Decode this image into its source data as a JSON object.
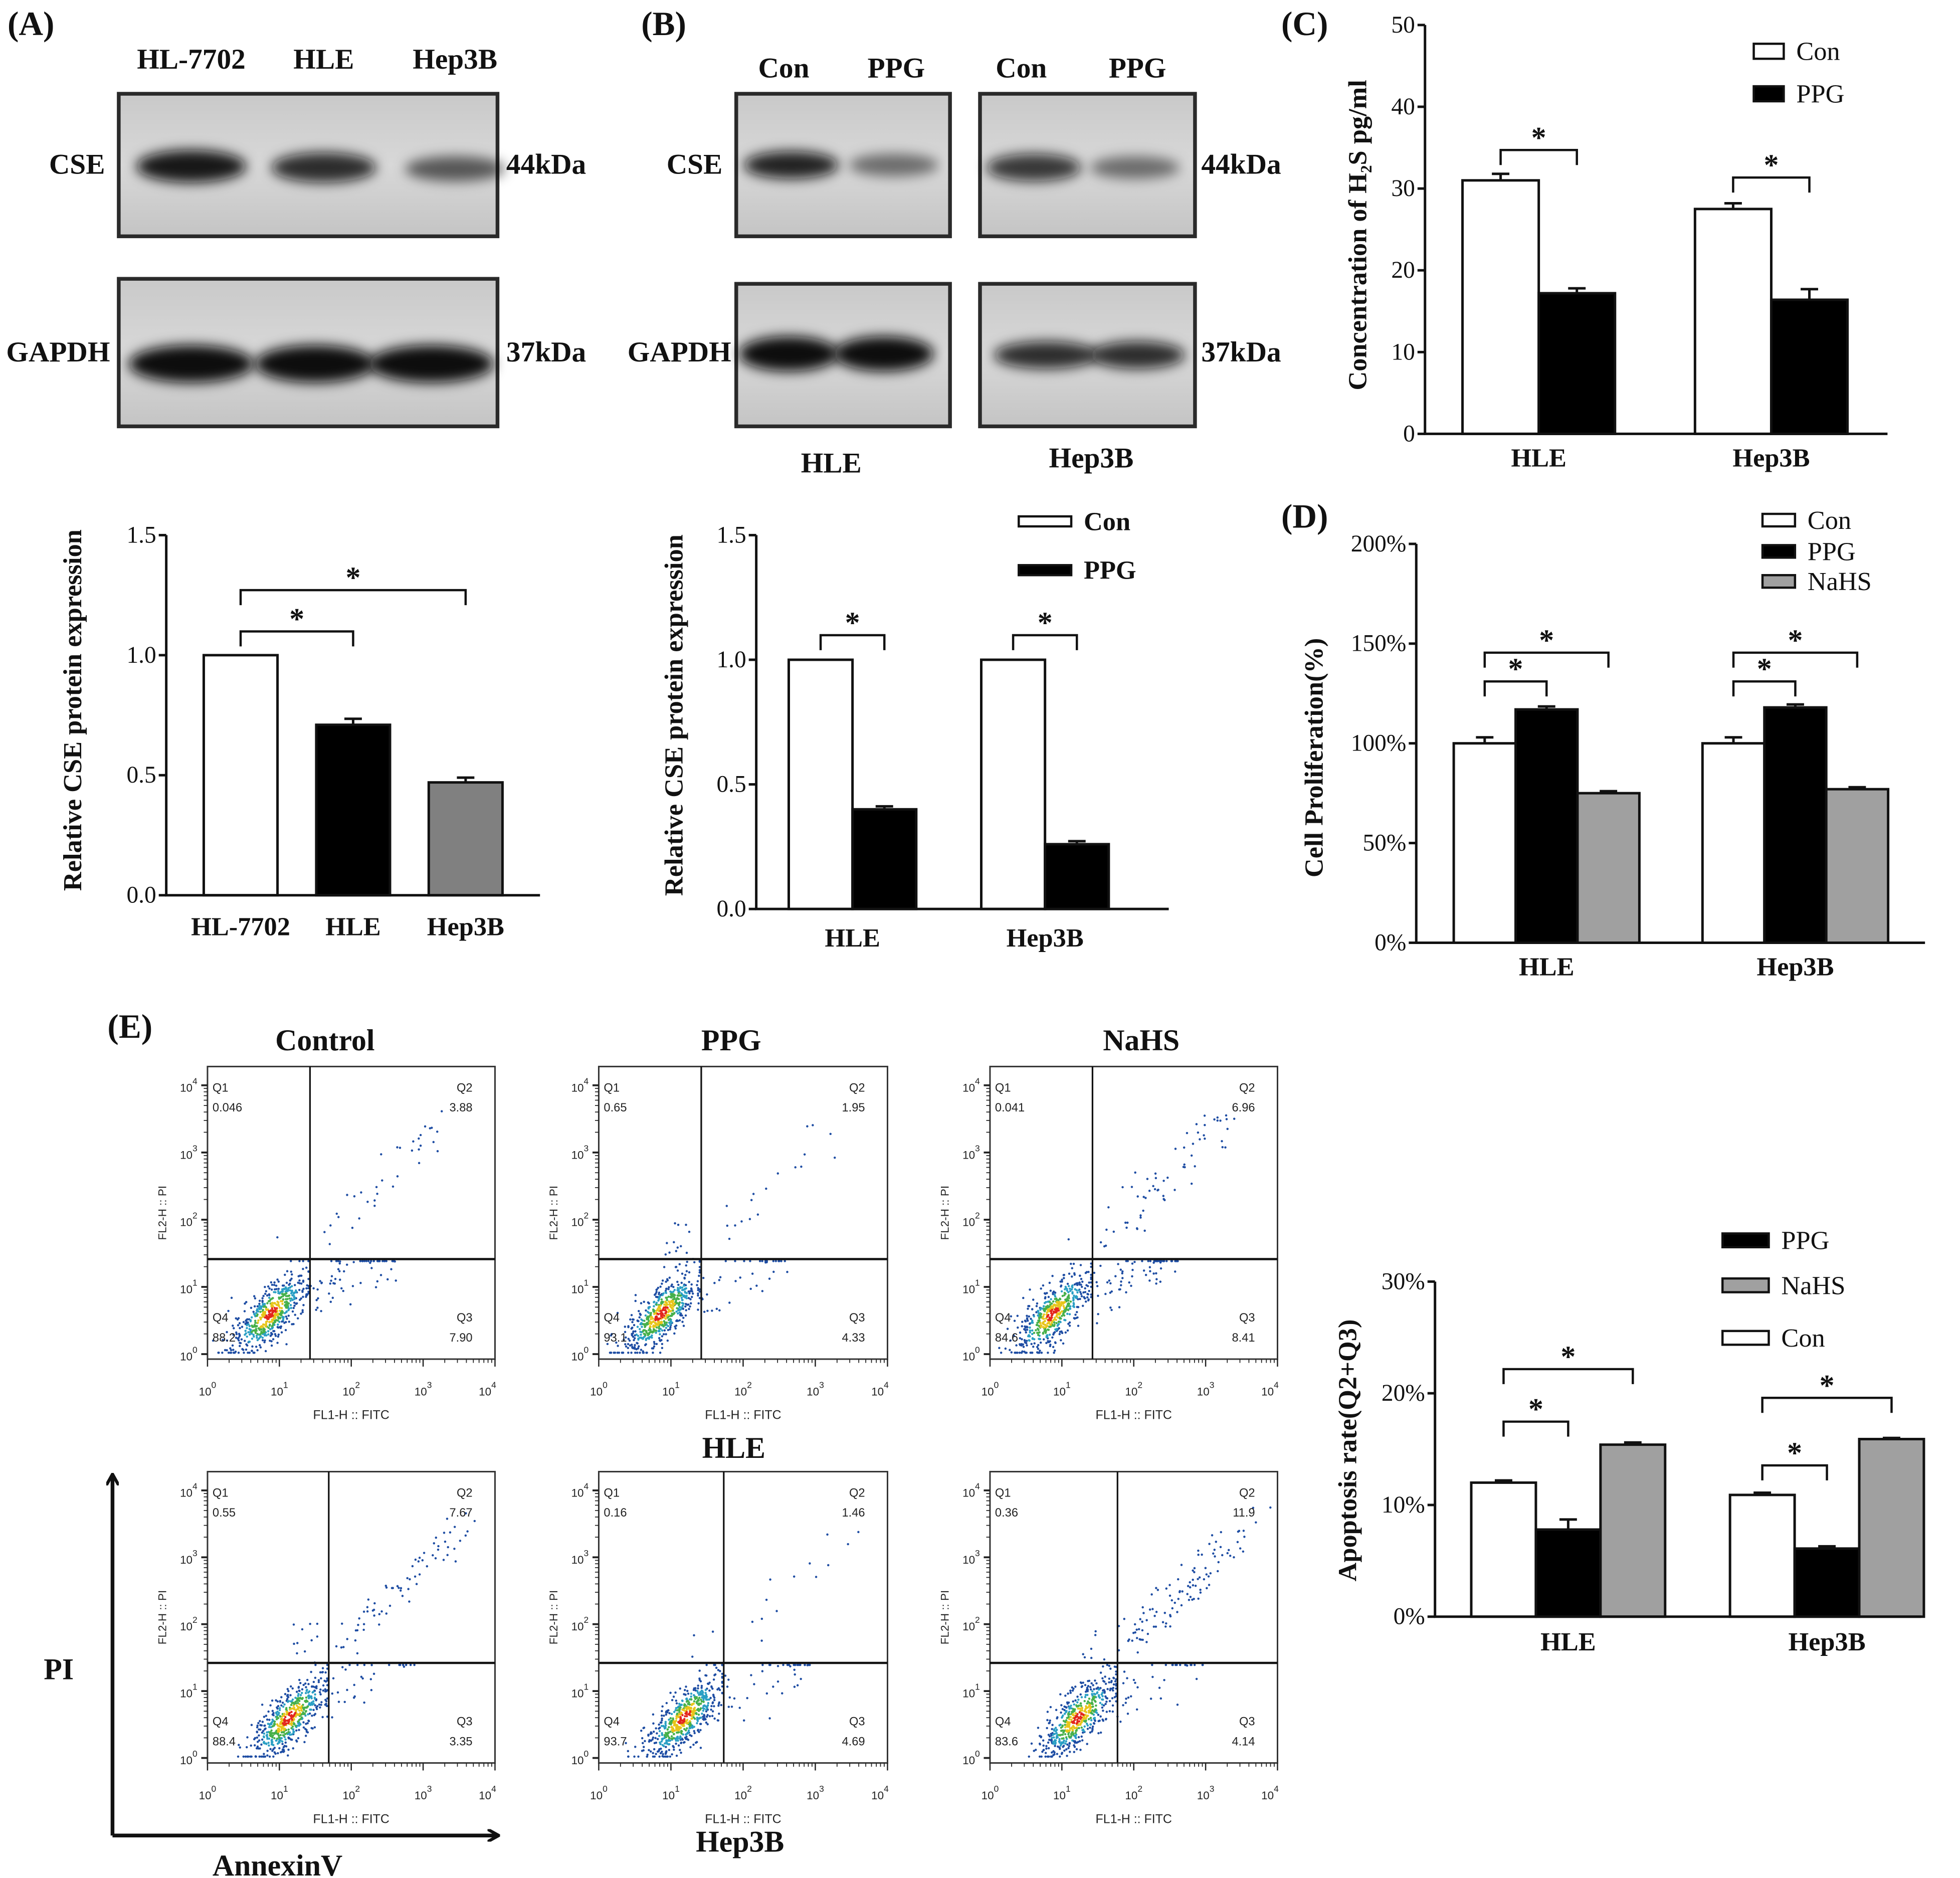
{
  "panels": {
    "A": "(A)",
    "B": "(B)",
    "C": "(C)",
    "D": "(D)",
    "E": "(E)"
  },
  "blot_A": {
    "lanes": [
      "HL-7702",
      "HLE",
      "Hep3B"
    ],
    "rows": [
      "CSE",
      "GAPDH"
    ],
    "sizes": [
      "44kDa",
      "37kDa"
    ]
  },
  "blot_B": {
    "lanes": [
      "Con",
      "PPG",
      "Con",
      "PPG"
    ],
    "rows": [
      "CSE",
      "GAPDH"
    ],
    "sizes": [
      "44kDa",
      "37kDa"
    ],
    "cells": [
      "HLE",
      "Hep3B"
    ]
  },
  "flow": {
    "columns": [
      "Control",
      "PPG",
      "NaHS"
    ],
    "rows": [
      "HLE",
      "Hep3B"
    ],
    "y_axis": "PI",
    "x_axis": "AnnexinV",
    "tick_base": "10",
    "tick_exponents": [
      "0",
      "1",
      "2",
      "3",
      "4"
    ]
  },
  "chart_data": [
    {
      "id": "A",
      "type": "bar",
      "title": "",
      "xlabel": "",
      "ylabel": "Relative CSE protein expression",
      "categories": [
        "HL-7702",
        "HLE",
        "Hep3B"
      ],
      "series": [
        {
          "name": "",
          "values": [
            1.0,
            0.71,
            0.47
          ],
          "errors": [
            0,
            0.025,
            0.02
          ],
          "color": [
            "#ffffff",
            "#000000",
            "#808080"
          ]
        }
      ],
      "ylim": [
        0,
        1.5
      ],
      "yticks": [
        0,
        0.5,
        1.0,
        1.5
      ],
      "ytick_labels": [
        "0.0",
        "0.5",
        "1.0",
        "1.5"
      ],
      "significance": [
        {
          "bars": [
            0,
            1
          ],
          "label": "*"
        },
        {
          "bars": [
            0,
            2
          ],
          "label": "*"
        }
      ]
    },
    {
      "id": "B",
      "type": "bar",
      "title": "",
      "xlabel": "",
      "ylabel": "Relative CSE protein expression",
      "categories": [
        "HLE",
        "Hep3B"
      ],
      "series": [
        {
          "name": "Con",
          "values": [
            1.0,
            1.0
          ],
          "errors": [
            0,
            0
          ],
          "color": "#ffffff"
        },
        {
          "name": "PPG",
          "values": [
            0.4,
            0.26
          ],
          "errors": [
            0.012,
            0.012
          ],
          "color": "#000000"
        }
      ],
      "ylim": [
        0,
        1.5
      ],
      "yticks": [
        0,
        0.5,
        1.0,
        1.5
      ],
      "ytick_labels": [
        "0.0",
        "0.5",
        "1.0",
        "1.5"
      ],
      "legend": "top-right",
      "significance": [
        {
          "bars": [
            0,
            1
          ],
          "label": "*"
        },
        {
          "bars": [
            2,
            3
          ],
          "label": "*"
        }
      ]
    },
    {
      "id": "C",
      "type": "bar",
      "title": "",
      "xlabel": "",
      "ylabel": "Concentration of H₂S pg/ml",
      "categories": [
        "HLE",
        "Hep3B"
      ],
      "series": [
        {
          "name": "Con",
          "values": [
            31.0,
            27.5
          ],
          "errors": [
            0.8,
            0.7
          ],
          "color": "#ffffff"
        },
        {
          "name": "PPG",
          "values": [
            17.2,
            16.4
          ],
          "errors": [
            0.6,
            1.3
          ],
          "color": "#000000"
        }
      ],
      "ylim": [
        0,
        50
      ],
      "yticks": [
        0,
        10,
        20,
        30,
        40,
        50
      ],
      "ytick_labels": [
        "0",
        "10",
        "20",
        "30",
        "40",
        "50"
      ],
      "legend": "top-right",
      "significance": [
        {
          "bars": [
            0,
            1
          ],
          "label": "*"
        },
        {
          "bars": [
            2,
            3
          ],
          "label": "*"
        }
      ]
    },
    {
      "id": "D",
      "type": "bar",
      "title": "",
      "xlabel": "",
      "ylabel": "Cell Proliferation(%)",
      "categories": [
        "HLE",
        "Hep3B"
      ],
      "series": [
        {
          "name": "Con",
          "values": [
            100,
            100
          ],
          "errors": [
            3,
            3
          ],
          "color": "#ffffff"
        },
        {
          "name": "PPG",
          "values": [
            117,
            118
          ],
          "errors": [
            1.5,
            1.5
          ],
          "color": "#000000"
        },
        {
          "name": "NaHS",
          "values": [
            75,
            77
          ],
          "errors": [
            1,
            1
          ],
          "color": "#a0a0a0"
        }
      ],
      "ylim": [
        0,
        200
      ],
      "yticks": [
        0,
        50,
        100,
        150,
        200
      ],
      "ytick_labels": [
        "0%",
        "50%",
        "100%",
        "150%",
        "200%"
      ],
      "legend": "top-right",
      "significance": [
        {
          "bars": [
            0,
            1
          ],
          "label": "*"
        },
        {
          "bars": [
            0,
            2
          ],
          "label": "*"
        },
        {
          "bars": [
            3,
            4
          ],
          "label": "*"
        },
        {
          "bars": [
            3,
            5
          ],
          "label": "*"
        }
      ]
    },
    {
      "id": "E-apoptosis",
      "type": "bar",
      "title": "",
      "xlabel": "",
      "ylabel": "Apoptosis rate(Q2+Q3)",
      "categories": [
        "HLE",
        "Hep3B"
      ],
      "series": [
        {
          "name": "Con",
          "values": [
            12.0,
            10.9
          ],
          "errors": [
            0.2,
            0.2
          ],
          "color": "#ffffff"
        },
        {
          "name": "PPG",
          "values": [
            7.8,
            6.1
          ],
          "errors": [
            0.9,
            0.2
          ],
          "color": "#000000"
        },
        {
          "name": "NaHS",
          "values": [
            15.4,
            15.9
          ],
          "errors": [
            0.2,
            0.1
          ],
          "color": "#a0a0a0"
        }
      ],
      "ylim": [
        0,
        30
      ],
      "yticks": [
        0,
        10,
        20,
        30
      ],
      "ytick_labels": [
        "0%",
        "10%",
        "20%",
        "30%"
      ],
      "legend": "top-right",
      "significance": [
        {
          "bars": [
            0,
            1
          ],
          "label": "*"
        },
        {
          "bars": [
            0,
            2
          ],
          "label": "*"
        },
        {
          "bars": [
            3,
            4
          ],
          "label": "*"
        },
        {
          "bars": [
            3,
            5
          ],
          "label": "*"
        }
      ]
    },
    {
      "id": "E-HLE-Control",
      "type": "scatter",
      "cell_line": "HLE",
      "treatment": "Control",
      "xlabel": "FL1-H :: FITC",
      "ylabel": "FL2-H :: PI",
      "xlim": [
        1,
        10000
      ],
      "ylim": [
        1,
        10000
      ],
      "quadrants": {
        "Q1": "0.046",
        "Q2": "3.88",
        "Q3": "7.90",
        "Q4": "88.2"
      }
    },
    {
      "id": "E-HLE-PPG",
      "type": "scatter",
      "cell_line": "HLE",
      "treatment": "PPG",
      "xlabel": "FL1-H :: FITC",
      "ylabel": "FL2-H :: PI",
      "xlim": [
        1,
        10000
      ],
      "ylim": [
        1,
        10000
      ],
      "quadrants": {
        "Q1": "0.65",
        "Q2": "1.95",
        "Q3": "4.33",
        "Q4": "93.1"
      }
    },
    {
      "id": "E-HLE-NaHS",
      "type": "scatter",
      "cell_line": "HLE",
      "treatment": "NaHS",
      "xlabel": "FL1-H :: FITC",
      "ylabel": "FL2-H :: PI",
      "xlim": [
        1,
        10000
      ],
      "ylim": [
        1,
        10000
      ],
      "quadrants": {
        "Q1": "0.041",
        "Q2": "6.96",
        "Q3": "8.41",
        "Q4": "84.6"
      }
    },
    {
      "id": "E-Hep3B-Control",
      "type": "scatter",
      "cell_line": "Hep3B",
      "treatment": "Control",
      "xlabel": "FL1-H :: FITC",
      "ylabel": "FL2-H :: PI",
      "xlim": [
        1,
        10000
      ],
      "ylim": [
        1,
        10000
      ],
      "quadrants": {
        "Q1": "0.55",
        "Q2": "7.67",
        "Q3": "3.35",
        "Q4": "88.4"
      }
    },
    {
      "id": "E-Hep3B-PPG",
      "type": "scatter",
      "cell_line": "Hep3B",
      "treatment": "PPG",
      "xlabel": "FL1-H :: FITC",
      "ylabel": "FL2-H :: PI",
      "xlim": [
        1,
        10000
      ],
      "ylim": [
        1,
        10000
      ],
      "quadrants": {
        "Q1": "0.16",
        "Q2": "1.46",
        "Q3": "4.69",
        "Q4": "93.7"
      }
    },
    {
      "id": "E-Hep3B-NaHS",
      "type": "scatter",
      "cell_line": "Hep3B",
      "treatment": "NaHS",
      "xlabel": "FL1-H :: FITC",
      "ylabel": "FL2-H :: PI",
      "xlim": [
        1,
        10000
      ],
      "ylim": [
        1,
        10000
      ],
      "quadrants": {
        "Q1": "0.36",
        "Q2": "11.9",
        "Q3": "4.14",
        "Q4": "83.6"
      }
    }
  ]
}
